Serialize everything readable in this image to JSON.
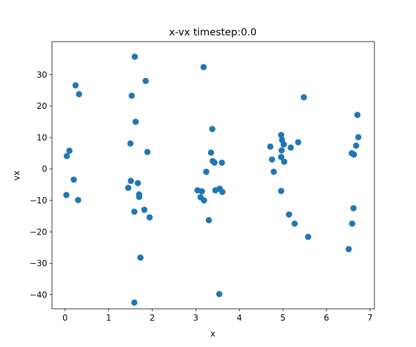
{
  "chart_data": {
    "type": "scatter",
    "title": "x-vx timestep:0.0",
    "xlabel": "x",
    "ylabel": "vx",
    "xlim": [
      -0.3,
      7.1
    ],
    "ylim": [
      -44.5,
      40.5
    ],
    "xticks": [
      0,
      1,
      2,
      3,
      4,
      5,
      6,
      7
    ],
    "yticks": [
      -40,
      -30,
      -20,
      -10,
      0,
      10,
      20,
      30
    ],
    "grid": false,
    "legend": "none",
    "marker_color": "#1f77b4",
    "series": [
      {
        "points": [
          [
            0.04,
            4.1
          ],
          [
            0.1,
            5.8
          ],
          [
            0.03,
            -8.3
          ],
          [
            0.2,
            -3.4
          ],
          [
            0.24,
            26.6
          ],
          [
            0.32,
            23.8
          ],
          [
            0.3,
            -9.9
          ],
          [
            1.6,
            35.7
          ],
          [
            1.53,
            23.3
          ],
          [
            1.85,
            28.0
          ],
          [
            1.62,
            15.0
          ],
          [
            1.5,
            8.1
          ],
          [
            1.89,
            5.4
          ],
          [
            1.51,
            -3.8
          ],
          [
            1.45,
            -6.0
          ],
          [
            1.67,
            -4.5
          ],
          [
            1.7,
            -8.1
          ],
          [
            1.7,
            -8.9
          ],
          [
            1.59,
            -13.6
          ],
          [
            1.82,
            -13.0
          ],
          [
            1.94,
            -15.4
          ],
          [
            1.73,
            -28.2
          ],
          [
            1.59,
            -42.5
          ],
          [
            3.18,
            32.4
          ],
          [
            3.38,
            12.7
          ],
          [
            3.35,
            5.2
          ],
          [
            3.39,
            2.5
          ],
          [
            3.43,
            2.0
          ],
          [
            3.24,
            -0.9
          ],
          [
            3.6,
            2.0
          ],
          [
            3.04,
            -6.8
          ],
          [
            3.14,
            -7.1
          ],
          [
            3.11,
            -9.0
          ],
          [
            3.19,
            -10.0
          ],
          [
            3.45,
            -6.8
          ],
          [
            3.55,
            -6.3
          ],
          [
            3.61,
            -7.3
          ],
          [
            3.3,
            -16.3
          ],
          [
            3.54,
            -39.8
          ],
          [
            4.96,
            10.8
          ],
          [
            4.98,
            9.2
          ],
          [
            5.02,
            7.8
          ],
          [
            4.97,
            5.9
          ],
          [
            4.96,
            3.8
          ],
          [
            5.03,
            2.3
          ],
          [
            4.71,
            7.1
          ],
          [
            4.75,
            3.0
          ],
          [
            4.79,
            -0.9
          ],
          [
            5.18,
            6.8
          ],
          [
            5.35,
            8.5
          ],
          [
            5.48,
            22.8
          ],
          [
            4.96,
            -7.0
          ],
          [
            5.14,
            -14.5
          ],
          [
            5.27,
            -17.4
          ],
          [
            5.58,
            -21.6
          ],
          [
            6.71,
            17.2
          ],
          [
            6.73,
            10.1
          ],
          [
            6.68,
            7.4
          ],
          [
            6.58,
            5.0
          ],
          [
            6.63,
            4.6
          ],
          [
            6.62,
            -12.5
          ],
          [
            6.59,
            -17.4
          ],
          [
            6.51,
            -25.5
          ]
        ]
      }
    ]
  }
}
